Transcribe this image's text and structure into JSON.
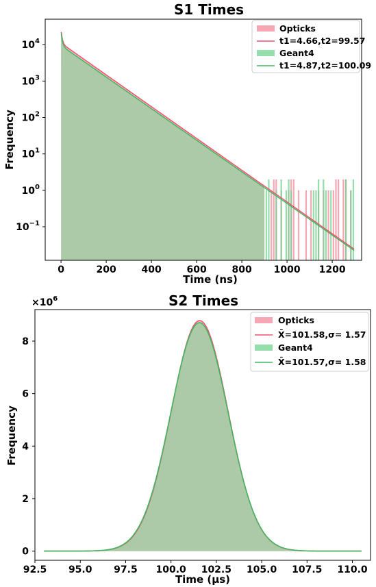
{
  "chart_data": [
    {
      "type": "area",
      "title": "S1 Times",
      "xlabel": "Time (ns)",
      "ylabel": "Frequency",
      "yscale": "log",
      "xlim": [
        -70,
        1330
      ],
      "ylim": [
        0.012,
        50000
      ],
      "x_ticks": [
        0,
        200,
        400,
        600,
        800,
        1000,
        1200
      ],
      "y_ticks": [
        {
          "value": 0.1,
          "base": "10",
          "exp": "−1"
        },
        {
          "value": 1,
          "base": "10",
          "exp": "0"
        },
        {
          "value": 10,
          "base": "10",
          "exp": "1"
        },
        {
          "value": 100,
          "base": "10",
          "exp": "2"
        },
        {
          "value": 1000,
          "base": "10",
          "exp": "3"
        },
        {
          "value": 10000,
          "base": "10",
          "exp": "4"
        }
      ],
      "legend_position": "top-right",
      "series": [
        {
          "name": "Opticks",
          "kind": "histogram",
          "color": "#f48a9a",
          "fast_amp": 14000,
          "t1": 4.66,
          "slow_amp": 11000,
          "t2": 99.57,
          "x_max": 1300
        },
        {
          "name": "t1=4.66,t2=99.57",
          "kind": "fit",
          "color": "#f0506e",
          "fast_amp": 14000,
          "t1": 4.66,
          "slow_amp": 11000,
          "t2": 99.57,
          "x_max": 1300
        },
        {
          "name": "Geant4",
          "kind": "histogram",
          "color": "#6fd38e",
          "fast_amp": 13000,
          "t1": 4.87,
          "slow_amp": 9500,
          "t2": 100.09,
          "x_max": 1300
        },
        {
          "name": "t1=4.87,t2=100.09",
          "kind": "fit",
          "color": "#3fb860",
          "fast_amp": 13000,
          "t1": 4.87,
          "slow_amp": 9500,
          "t2": 100.09,
          "x_max": 1300
        }
      ]
    },
    {
      "type": "area",
      "title": "S2 Times",
      "xlabel": "Time (μs)",
      "ylabel": "Frequency",
      "multiplier": "×10",
      "multiplier_exp": "6",
      "xlim": [
        92.5,
        111
      ],
      "ylim": [
        -0.35,
        9.2
      ],
      "x_ticks": [
        "92.5",
        "95.0",
        "97.5",
        "100.0",
        "102.5",
        "105.0",
        "107.5",
        "110.0"
      ],
      "y_ticks": [
        0,
        2,
        4,
        6,
        8
      ],
      "legend_position": "top-right",
      "series": [
        {
          "name": "Opticks",
          "kind": "histogram",
          "color": "#f48a9a",
          "mean": 101.58,
          "sigma": 1.57,
          "peak": 8.78,
          "x_range": [
            93,
            110.5
          ]
        },
        {
          "name": "X̄=101.58,σ= 1.57",
          "kind": "fit",
          "color": "#f0506e",
          "mean": 101.58,
          "sigma": 1.57,
          "peak": 8.78,
          "x_range": [
            93,
            110.5
          ]
        },
        {
          "name": "Geant4",
          "kind": "histogram",
          "color": "#6fd38e",
          "mean": 101.57,
          "sigma": 1.58,
          "peak": 8.7,
          "x_range": [
            93,
            110.5
          ]
        },
        {
          "name": "X̄=101.57,σ= 1.58",
          "kind": "fit",
          "color": "#3fb860",
          "mean": 101.57,
          "sigma": 1.58,
          "peak": 8.7,
          "x_range": [
            93,
            110.5
          ]
        }
      ]
    }
  ]
}
